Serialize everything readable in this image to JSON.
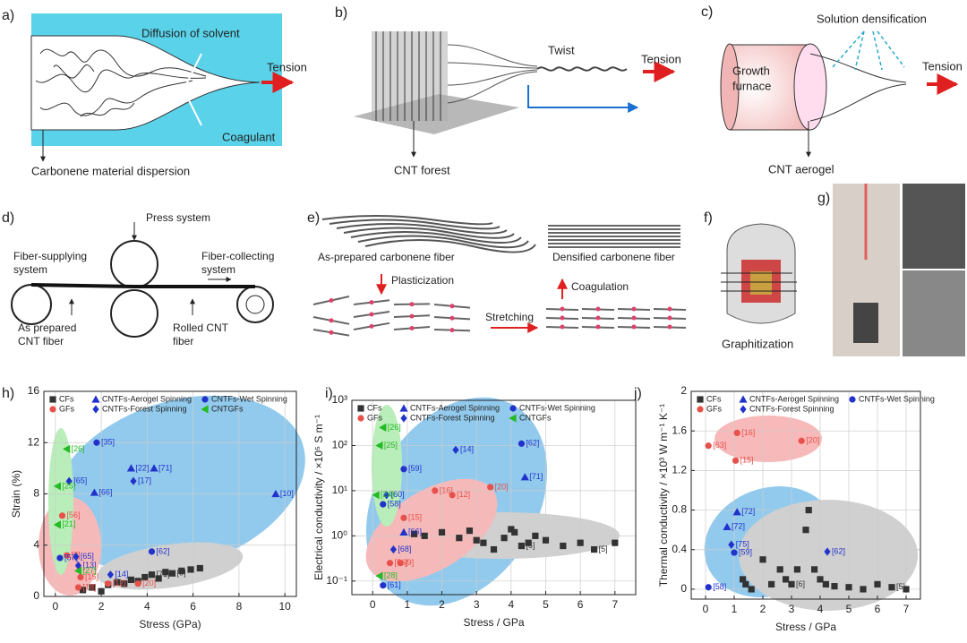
{
  "panels": {
    "a": {
      "label": "a)",
      "texts": [
        "Diffusion of solvent",
        "Tension",
        "Coagulant",
        "Carbonene material dispersion"
      ]
    },
    "b": {
      "label": "b)",
      "texts": [
        "Twist",
        "Tension",
        "CNT forest"
      ]
    },
    "c": {
      "label": "c)",
      "texts": [
        "Solution densification",
        "Tension",
        "Growth",
        "furnace",
        "CNT aerogel"
      ]
    },
    "d": {
      "label": "d)",
      "texts": [
        "Press system",
        "Fiber-supplying",
        "system",
        "Fiber-collecting",
        "system",
        "As prepared",
        "CNT fiber",
        "Rolled CNT",
        "fiber"
      ]
    },
    "e": {
      "label": "e)",
      "texts": [
        "As-prepared carbonene fiber",
        "Plasticization",
        "Stretching",
        "Coagulation",
        "Densified carbonene fiber"
      ]
    },
    "f": {
      "label": "f)",
      "texts": [
        "Graphitization"
      ]
    },
    "g": {
      "label": "g)"
    }
  },
  "chart_data": [
    {
      "type": "scatter",
      "label": "h)",
      "xlabel": "Stress (GPa)",
      "ylabel": "Strain (%)",
      "xlim": [
        -0.5,
        10.5
      ],
      "ylim": [
        0,
        16
      ],
      "xticks": [
        0,
        2,
        4,
        6,
        8,
        10
      ],
      "yticks": [
        0,
        4,
        8,
        12,
        16
      ],
      "grid": true,
      "series": [
        {
          "name": "CFs",
          "color": "#333333",
          "marker": "square",
          "x": [
            1.2,
            1.6,
            2.0,
            2.3,
            2.7,
            3.0,
            3.3,
            3.6,
            3.9,
            4.2,
            4.5,
            4.8,
            5.1,
            5.5,
            5.9,
            6.3
          ],
          "values": [
            0.5,
            0.7,
            0.4,
            0.9,
            1.1,
            1.0,
            1.3,
            1.2,
            1.5,
            1.7,
            1.4,
            1.9,
            1.8,
            2.0,
            2.1,
            2.2
          ],
          "labels": [
            null,
            null,
            null,
            null,
            null,
            null,
            null,
            null,
            null,
            "[71]",
            null,
            null,
            "[5]",
            null,
            null,
            null
          ]
        },
        {
          "name": "GFs",
          "color": "#e8504a",
          "marker": "circle",
          "x": [
            0.5,
            0.3,
            1.1,
            1.0,
            2.3,
            3.6
          ],
          "values": [
            3.2,
            6.3,
            1.5,
            0.7,
            1.0,
            1.0
          ],
          "labels": [
            "[9]",
            "[56]",
            "[15]",
            "[18]",
            "[12]",
            "[20]"
          ]
        },
        {
          "name": "CNTFs-Aerogel Spinning",
          "color": "#2233cc",
          "marker": "triangle",
          "x": [
            3.3,
            4.3,
            9.6,
            1.7
          ],
          "values": [
            10,
            10,
            8,
            8.1
          ],
          "labels": [
            "[22]",
            "[71]",
            "[10]",
            "[66]"
          ]
        },
        {
          "name": "CNTFs-Forest Spinning",
          "color": "#2233cc",
          "marker": "diamond",
          "x": [
            3.4,
            0.6,
            0.9,
            1.0,
            2.4
          ],
          "values": [
            9,
            9,
            3.1,
            2.4,
            1.7
          ],
          "labels": [
            "[17]",
            "[65]",
            "[65]",
            "[13]",
            "[14]"
          ]
        },
        {
          "name": "CNTFs-Wet Spinning",
          "color": "#2233cc",
          "marker": "circle",
          "x": [
            1.8,
            0.2,
            4.2
          ],
          "values": [
            12,
            3,
            3.5
          ],
          "labels": [
            "[35]",
            "[57]",
            "[62]"
          ]
        },
        {
          "name": "CNTGFs",
          "color": "#22bb22",
          "marker": "triangle-left",
          "x": [
            0.5,
            0.1,
            0.1,
            1.0
          ],
          "values": [
            11.5,
            8.6,
            5.6,
            2.0
          ],
          "labels": [
            "[26]",
            "[25]",
            "[21]",
            "[27]"
          ]
        }
      ]
    },
    {
      "type": "scatter",
      "label": "i)",
      "xlabel": "Stress / GPa",
      "ylabel": "Electrical conductivity / ×10⁵ S m⁻¹",
      "log_y": true,
      "xlim": [
        -0.6,
        7.6
      ],
      "ylim": [
        0.05,
        1000
      ],
      "xticks": [
        0,
        1,
        2,
        3,
        4,
        5,
        6,
        7
      ],
      "yticks": [
        {
          "value": 0.1,
          "label": "10⁻¹"
        },
        {
          "value": 1,
          "label": "10⁰"
        },
        {
          "value": 10,
          "label": "10¹"
        },
        {
          "value": 100,
          "label": "10²"
        },
        {
          "value": 1000,
          "label": "10³"
        }
      ],
      "grid": true,
      "series": [
        {
          "name": "CFs",
          "color": "#333333",
          "marker": "square",
          "x": [
            1.2,
            1.5,
            2.0,
            2.5,
            2.8,
            3.0,
            3.2,
            3.5,
            3.8,
            4.0,
            4.1,
            4.3,
            4.5,
            4.7,
            5.0,
            5.5,
            6.0,
            6.4,
            7.0
          ],
          "values": [
            1.1,
            1.0,
            1.2,
            0.9,
            1.3,
            0.8,
            0.7,
            0.5,
            0.9,
            1.4,
            1.2,
            0.6,
            0.7,
            1.0,
            0.8,
            0.6,
            0.7,
            0.5,
            0.7
          ],
          "labels": [
            null,
            null,
            null,
            null,
            null,
            null,
            null,
            null,
            null,
            null,
            null,
            "[6]",
            null,
            null,
            null,
            null,
            null,
            "[5]",
            null
          ]
        },
        {
          "name": "GFs",
          "color": "#e8504a",
          "marker": "circle",
          "x": [
            1.8,
            2.3,
            3.4,
            0.9,
            0.8,
            0.5
          ],
          "values": [
            10,
            8,
            12,
            2.5,
            0.25,
            0.25
          ],
          "labels": [
            "[16]",
            "[12]",
            "[20]",
            "[15]",
            "[9]",
            "[56]"
          ]
        },
        {
          "name": "CNTFs-Aerogel Spinning",
          "color": "#2233cc",
          "marker": "triangle",
          "x": [
            4.4,
            0.9
          ],
          "values": [
            20,
            1.2
          ],
          "labels": [
            "[71]",
            "[66]"
          ]
        },
        {
          "name": "CNTFs-Forest Spinning",
          "color": "#2233cc",
          "marker": "diamond",
          "x": [
            2.4,
            0.4,
            0.6
          ],
          "values": [
            80,
            8,
            0.5
          ],
          "labels": [
            "[14]",
            "[60]",
            "[68]"
          ]
        },
        {
          "name": "CNTFs-Wet Spinning",
          "color": "#2233cc",
          "marker": "circle",
          "x": [
            4.3,
            0.9,
            0.3,
            0.3
          ],
          "values": [
            110,
            30,
            5,
            0.08
          ],
          "labels": [
            "[62]",
            "[59]",
            "[58]",
            "[61]"
          ]
        },
        {
          "name": "CNTGFs",
          "color": "#22bb22",
          "marker": "triangle-left",
          "x": [
            0.3,
            0.2,
            0.1,
            0.2
          ],
          "values": [
            250,
            100,
            8,
            0.13
          ],
          "labels": [
            "[26]",
            "[25]",
            "[24]",
            "[28]"
          ]
        }
      ]
    },
    {
      "type": "scatter",
      "label": "j)",
      "xlabel": "Stress / GPa",
      "ylabel": "Thermal conductivity / ×10³ W m⁻¹ K⁻¹",
      "xlim": [
        -0.5,
        7.5
      ],
      "ylim": [
        -0.1,
        2
      ],
      "xticks": [
        0,
        1,
        2,
        3,
        4,
        5,
        6,
        7
      ],
      "yticks": [
        0,
        0.4,
        0.8,
        1.2,
        1.6,
        2
      ],
      "grid": true,
      "series": [
        {
          "name": "CFs",
          "color": "#333333",
          "marker": "square",
          "x": [
            1.3,
            1.4,
            1.6,
            2.0,
            2.3,
            2.6,
            2.8,
            3.0,
            3.2,
            3.5,
            3.6,
            3.8,
            4.0,
            4.2,
            4.5,
            5.0,
            5.5,
            6.0,
            6.5,
            7.0
          ],
          "values": [
            0.1,
            0.05,
            0,
            0.3,
            0.05,
            0.2,
            0.1,
            0.05,
            0.2,
            0.6,
            0.8,
            0.2,
            0.1,
            0.05,
            0.03,
            0.02,
            0,
            0.05,
            0.02,
            0
          ],
          "labels": [
            null,
            null,
            null,
            null,
            null,
            null,
            null,
            "[6]",
            null,
            null,
            null,
            null,
            null,
            null,
            null,
            null,
            null,
            null,
            "[5]",
            null
          ]
        },
        {
          "name": "GFs",
          "color": "#e8504a",
          "marker": "circle",
          "x": [
            0.1,
            1.1,
            1.05,
            3.35
          ],
          "values": [
            1.45,
            1.58,
            1.3,
            1.5
          ],
          "labels": [
            "[63]",
            "[16]",
            "[15]",
            "[20]"
          ]
        },
        {
          "name": "CNTFs-Aerogel Spinning",
          "color": "#2233cc",
          "marker": "triangle",
          "x": [
            1.1,
            0.75
          ],
          "values": [
            0.78,
            0.63
          ],
          "labels": [
            "[72]",
            "[72]"
          ]
        },
        {
          "name": "CNTFs-Forest Spinning",
          "color": "#2233cc",
          "marker": "diamond",
          "x": [
            0.9,
            4.25
          ],
          "values": [
            0.45,
            0.38
          ],
          "labels": [
            "[75]",
            "[62]"
          ]
        },
        {
          "name": "CNTFs-Wet Spinning",
          "color": "#2233cc",
          "marker": "circle",
          "x": [
            1.0,
            0.1
          ],
          "values": [
            0.37,
            0.02
          ],
          "labels": [
            "[59]",
            "[58]"
          ]
        }
      ]
    }
  ]
}
